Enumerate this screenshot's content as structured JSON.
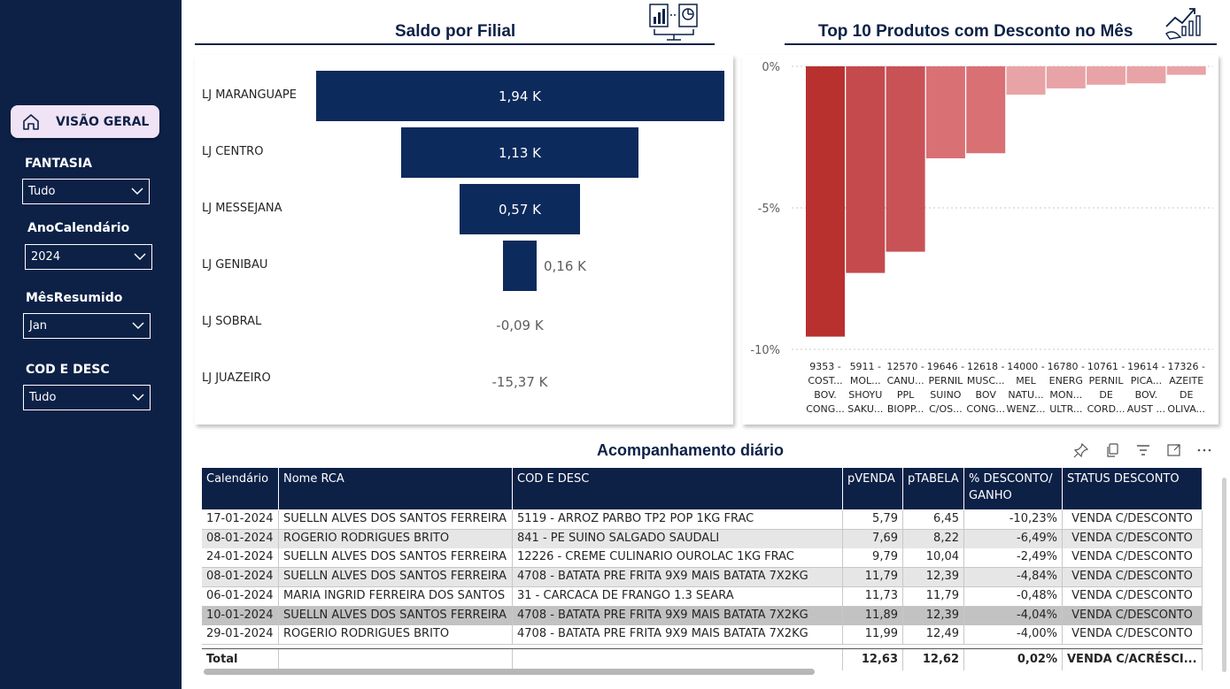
{
  "sidebar": {
    "home_label": "VISÃO GERAL",
    "filters": [
      {
        "label": "FANTASIA",
        "value": "Tudo"
      },
      {
        "label": "AnoCalendário",
        "value": "2024"
      },
      {
        "label": "MêsResumido",
        "value": "Jan"
      },
      {
        "label": "COD E DESC",
        "value": "Tudo"
      }
    ]
  },
  "funnel": {
    "title": "Saldo por Filial",
    "icon": "report-documents-icon",
    "items": [
      {
        "label": "LJ MARANGUAPE",
        "value": 1.94,
        "value_label": "1,94 K"
      },
      {
        "label": "LJ CENTRO",
        "value": 1.13,
        "value_label": "1,13 K"
      },
      {
        "label": "LJ MESSEJANA",
        "value": 0.57,
        "value_label": "0,57 K"
      },
      {
        "label": "LJ GENIBAU",
        "value": 0.16,
        "value_label": "0,16 K"
      },
      {
        "label": "LJ SOBRAL",
        "value": -0.09,
        "value_label": "-0,09 K"
      },
      {
        "label": "LJ JUAZEIRO",
        "value": -15.37,
        "value_label": "-15,37 K"
      }
    ],
    "bar_color": "#0d2a5c"
  },
  "chart_data": {
    "type": "bar",
    "title": "Top 10 Produtos com Desconto no Mês",
    "categories": [
      [
        "9353 -",
        "COST...",
        "BOV.",
        "CONG..."
      ],
      [
        "5911 -",
        "MOL...",
        "SHOYU",
        "SAKU..."
      ],
      [
        "12570 -",
        "CANU...",
        "PPL",
        "BIOPP..."
      ],
      [
        "19646 -",
        "PERNIL",
        "SUINO",
        "C/OS..."
      ],
      [
        "12618 -",
        "MUSC...",
        "BOV",
        "CONG..."
      ],
      [
        "14000 -",
        "MEL",
        "NATU...",
        "WENZ..."
      ],
      [
        "16780 -",
        "ENERG",
        "MON...",
        "ULTR..."
      ],
      [
        "10761 -",
        "PERNIL",
        "DE",
        "CORD..."
      ],
      [
        "19614 -",
        "PICA...",
        "BOV.",
        "AUST ..."
      ],
      [
        "17326 -",
        "AZEITE",
        "DE",
        "OLIVA..."
      ]
    ],
    "values": [
      -9.55,
      -7.3,
      -6.55,
      -3.25,
      -3.07,
      -1.0,
      -0.78,
      -0.65,
      -0.6,
      -0.3
    ],
    "colors": [
      "#b8312f",
      "#c44a4e",
      "#c95256",
      "#d97074",
      "#d97074",
      "#e8a3a6",
      "#e8a3a6",
      "#e8a3a6",
      "#e8a3a6",
      "#e8a3a6"
    ],
    "ylim": [
      -10,
      0
    ],
    "yticks": [
      "0%",
      "-5%",
      "-10%"
    ],
    "grid": true,
    "icon": "growth-analysis-icon"
  },
  "table": {
    "title": "Acompanhamento diário",
    "headers": [
      "Calendário",
      "Nome RCA",
      "COD E DESC",
      "pVENDA",
      "pTABELA",
      "% DESCONTO/ GANHO",
      "STATUS DESCONTO"
    ],
    "rows": [
      [
        "17-01-2024",
        "SUELLN ALVES DOS SANTOS FERREIRA",
        "5119 - ARROZ PARBO TP2 POP 1KG FRAC",
        "5,79",
        "6,45",
        "-10,23%",
        "VENDA C/DESCONTO"
      ],
      [
        "08-01-2024",
        "ROGERIO RODRIGUES BRITO",
        "841 - PE SUINO SALGADO SAUDALI",
        "7,69",
        "8,22",
        "-6,49%",
        "VENDA C/DESCONTO"
      ],
      [
        "24-01-2024",
        "SUELLN ALVES DOS SANTOS FERREIRA",
        "12226 - CREME CULINARIO OUROLAC 1KG FRAC",
        "9,79",
        "10,04",
        "-2,49%",
        "VENDA C/DESCONTO"
      ],
      [
        "08-01-2024",
        "SUELLN ALVES DOS SANTOS FERREIRA",
        "4708 - BATATA PRE FRITA 9X9 MAIS BATATA 7X2KG",
        "11,79",
        "12,39",
        "-4,84%",
        "VENDA C/DESCONTO"
      ],
      [
        "06-01-2024",
        "MARIA INGRID FERREIRA DOS SANTOS",
        "31 - CARCACA DE FRANGO 1.3 SEARA",
        "11,73",
        "11,79",
        "-0,48%",
        "VENDA C/DESCONTO"
      ],
      [
        "10-01-2024",
        "SUELLN ALVES DOS SANTOS FERREIRA",
        "4708 - BATATA PRE FRITA 9X9 MAIS BATATA 7X2KG",
        "11,89",
        "12,39",
        "-4,04%",
        "VENDA C/DESCONTO"
      ],
      [
        "29-01-2024",
        "ROGERIO RODRIGUES BRITO",
        "4708 - BATATA PRE FRITA 9X9 MAIS BATATA 7X2KG",
        "11,99",
        "12,49",
        "-4,00%",
        "VENDA C/DESCONTO"
      ]
    ],
    "total": [
      "Total",
      "",
      "",
      "12,63",
      "12,62",
      "0,02%",
      "VENDA C/ACRÉSCI..."
    ],
    "header_color": "#0d2147"
  }
}
